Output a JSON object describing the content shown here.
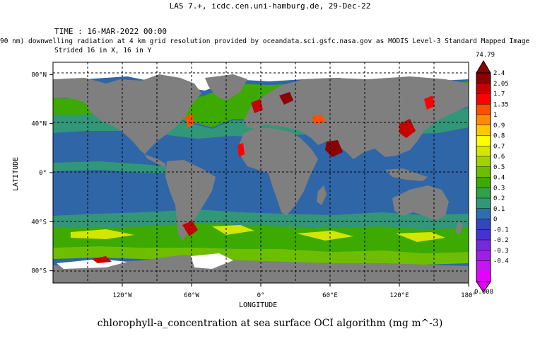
{
  "header": {
    "title": "LAS 7.+, icdc.cen.uni-hamburg.de, 29-Dec-22",
    "time": "TIME : 16-MAR-2022 00:00",
    "description": "90 nm) downwelling radiation at 4 km grid resolution provided by oceandata.sci.gsfc.nasa.gov as MODIS Level-3 Standard Mapped Image",
    "stride": "Strided 16 in X, 16 in Y"
  },
  "map": {
    "title": "chlorophyll-a_concentration at sea surface OCI algorithm (mg m^-3)",
    "x_axis_title": "LONGITUDE",
    "y_axis_title": "LATITUDE",
    "x_ticks": [
      {
        "label": "120°W",
        "value": -120
      },
      {
        "label": "60°W",
        "value": -60
      },
      {
        "label": "0°",
        "value": 0
      },
      {
        "label": "60°E",
        "value": 60
      },
      {
        "label": "120°E",
        "value": 120
      },
      {
        "label": "180°",
        "value": 180
      }
    ],
    "y_ticks": [
      {
        "label": "80°N",
        "value": 80
      },
      {
        "label": "40°N",
        "value": 40
      },
      {
        "label": "0°",
        "value": 0
      },
      {
        "label": "40°S",
        "value": -40
      },
      {
        "label": "80°S",
        "value": -80
      }
    ],
    "lon_range": [
      -180,
      180
    ],
    "lat_range": [
      -90,
      90
    ],
    "colors": {
      "land": "#7f7f7f",
      "no_data": "#ffffff",
      "open_ocean": "#2f66a8",
      "frame": "#000000"
    }
  },
  "colorbar": {
    "max_label": "74.79",
    "min_label": "0.008",
    "levels": [
      "2.4",
      "2.05",
      "1.7",
      "1.35",
      "1",
      "0.9",
      "0.8",
      "0.7",
      "0.6",
      "0.5",
      "0.4",
      "0.3",
      "0.2",
      "0.1",
      "0",
      "-0.1",
      "-0.2",
      "-0.3",
      "-0.4"
    ],
    "bands": [
      "#8b0000",
      "#c80000",
      "#ff0000",
      "#ff5000",
      "#ff8c00",
      "#ffc800",
      "#ffff00",
      "#d2e600",
      "#a0d200",
      "#6ebe00",
      "#3caa00",
      "#32a046",
      "#329678",
      "#2f6eaa",
      "#3246be",
      "#4632d2",
      "#7828dc",
      "#a01ee6",
      "#c814f0",
      "#e600ff"
    ]
  }
}
